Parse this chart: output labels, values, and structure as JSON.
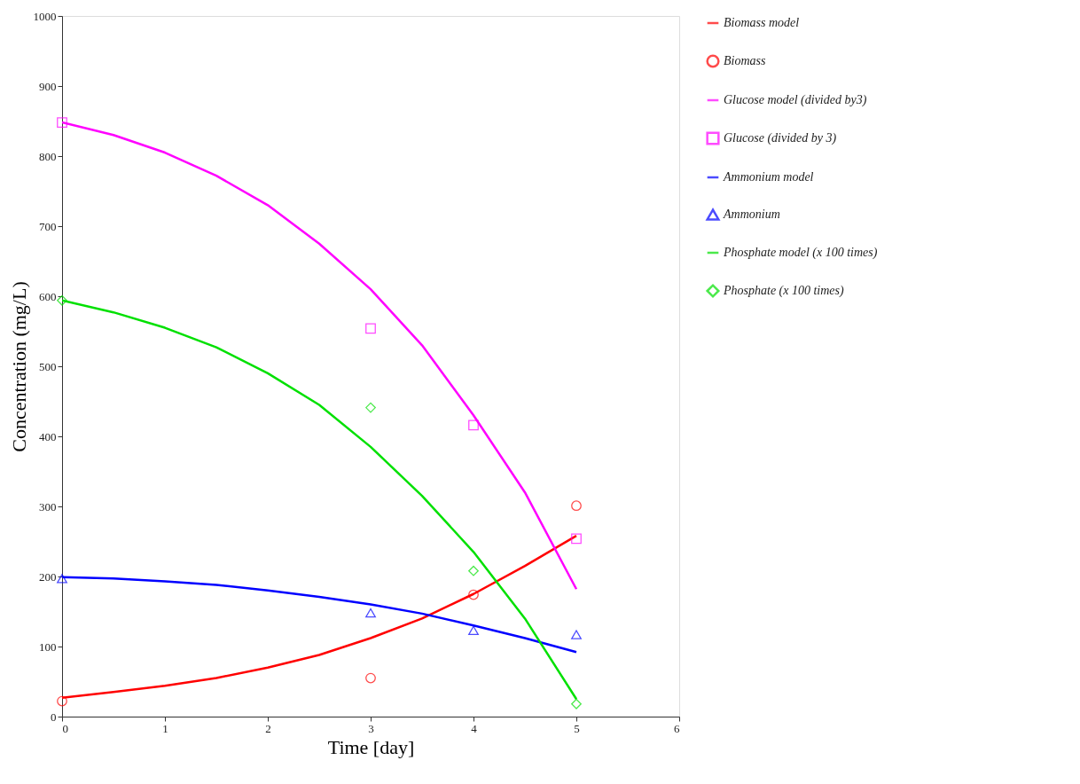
{
  "chart_data": {
    "type": "line",
    "xlabel": "Time [day]",
    "ylabel": "Concentration (mg/L)",
    "xlim": [
      0,
      6
    ],
    "xticks": [
      0,
      1,
      2,
      3,
      4,
      5,
      6
    ],
    "ylim": [
      0,
      1000
    ],
    "yticks": [
      0,
      100,
      200,
      300,
      400,
      500,
      600,
      700,
      800,
      900,
      1000
    ],
    "grid": false,
    "legend": "right",
    "series": [
      {
        "name": "Biomass model",
        "type": "line",
        "line_style": "solid",
        "color": "#ff0000",
        "x": [
          0,
          0.5,
          1,
          1.5,
          2,
          2.5,
          3,
          3.5,
          4,
          4.5,
          5
        ],
        "values": [
          27,
          35,
          44,
          55,
          70,
          88,
          112,
          140,
          175,
          215,
          258
        ]
      },
      {
        "name": "Biomass",
        "type": "scatter",
        "marker": "circle",
        "color": "#ff0000",
        "x": [
          0,
          3,
          4,
          5
        ],
        "values": [
          22,
          55,
          174,
          301
        ]
      },
      {
        "name": "Glucose model (divided by3)",
        "type": "line",
        "line_style": "solid",
        "color": "#ff00ff",
        "x": [
          0,
          0.5,
          1,
          1.5,
          2,
          2.5,
          3,
          3.5,
          4,
          4.5,
          5
        ],
        "values": [
          848,
          830,
          805,
          772,
          730,
          675,
          610,
          530,
          430,
          320,
          182
        ]
      },
      {
        "name": "Glucose (divided by 3)",
        "type": "scatter",
        "marker": "square",
        "color": "#ff00ff",
        "x": [
          0,
          3,
          4,
          5
        ],
        "values": [
          848,
          554,
          416,
          254
        ]
      },
      {
        "name": "Ammonium model",
        "type": "line",
        "line_style": "solid",
        "color": "#0000ff",
        "x": [
          0,
          0.5,
          1,
          1.5,
          2,
          2.5,
          3,
          3.5,
          4,
          4.5,
          5
        ],
        "values": [
          199,
          197,
          193,
          188,
          180,
          171,
          160,
          147,
          130,
          112,
          92
        ]
      },
      {
        "name": "Ammonium",
        "type": "scatter",
        "marker": "triangle",
        "color": "#0000ff",
        "x": [
          0,
          3,
          4,
          5
        ],
        "values": [
          197,
          148,
          123,
          117
        ]
      },
      {
        "name": "Phosphate model (x 100 times)",
        "type": "line",
        "line_style": "solid",
        "color": "#00e000",
        "x": [
          0,
          0.5,
          1,
          1.5,
          2,
          2.5,
          3,
          3.5,
          4,
          4.5,
          5
        ],
        "values": [
          594,
          577,
          555,
          527,
          490,
          445,
          385,
          315,
          235,
          140,
          25
        ]
      },
      {
        "name": "Phosphate (x 100 times)",
        "type": "scatter",
        "marker": "diamond",
        "color": "#00e000",
        "x": [
          0,
          3,
          4,
          5
        ],
        "values": [
          594,
          441,
          208,
          18
        ]
      }
    ]
  }
}
